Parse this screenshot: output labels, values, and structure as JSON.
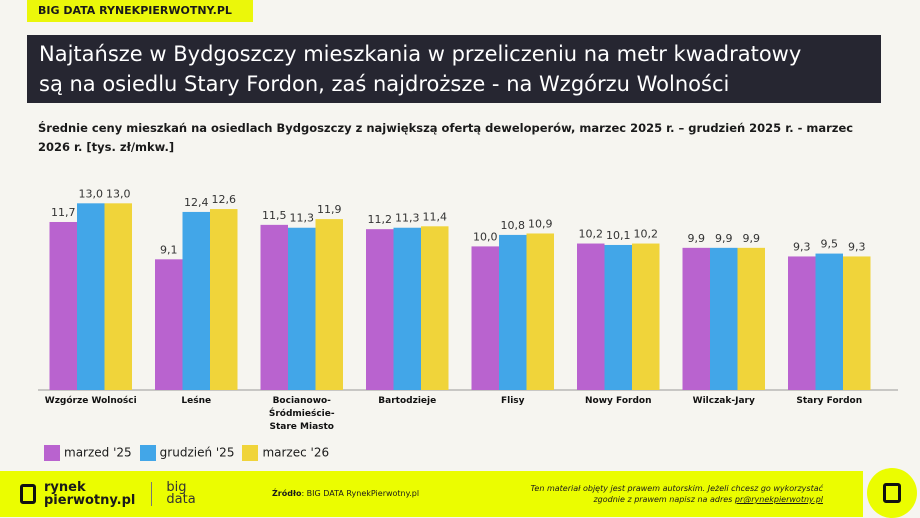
{
  "brand": "BIG DATA RYNEKPIERWOTNY.PL",
  "title_line1": "Najtańsze w Bydgoszczy mieszkania w przeliczeniu na metr kwadratowy",
  "title_line2": "są na osiedlu Stary Fordon, zaś najdroższe - na Wzgórzu Wolności",
  "chart_data": {
    "type": "bar",
    "title": "Średnie ceny mieszkań na osiedlach Bydgoszczy z największą ofertą deweloperów, marzec 2025 r. – grudzień 2025 r. - marzec 2026 r. [tys. zł/mkw.]",
    "categories": [
      "Wzgórze Wolności",
      "Leśne",
      "Bocianowo-Śródmieście-Stare Miasto",
      "Bartodzieje",
      "Flisy",
      "Nowy Fordon",
      "Wilczak-Jary",
      "Stary Fordon"
    ],
    "category_lines": [
      [
        "Wzgórze Wolności"
      ],
      [
        "Leśne"
      ],
      [
        "Bocianowo-",
        "Śródmieście-",
        "Stare Miasto"
      ],
      [
        "Bartodzieje"
      ],
      [
        "Flisy"
      ],
      [
        "Nowy Fordon"
      ],
      [
        "Wilczak-Jary"
      ],
      [
        "Stary Fordon"
      ]
    ],
    "series": [
      {
        "name": "marzed '25",
        "color": "#b963cf",
        "values": [
          11.7,
          9.1,
          11.5,
          11.2,
          10.0,
          10.2,
          9.9,
          9.3
        ]
      },
      {
        "name": "grudzień '25",
        "color": "#42a6e8",
        "values": [
          13.0,
          12.4,
          11.3,
          11.3,
          10.8,
          10.1,
          9.9,
          9.5
        ]
      },
      {
        "name": "marzec '26",
        "color": "#f0d43a",
        "values": [
          13.0,
          12.6,
          11.9,
          11.4,
          10.9,
          10.2,
          9.9,
          9.3
        ]
      }
    ],
    "ylim": [
      0,
      13
    ],
    "grid": false,
    "legend": "bottom-left",
    "decimal_separator": ","
  },
  "footer": {
    "logo_line1": "rynek",
    "logo_line2": "pierwotny.pl",
    "bigdata1": "big",
    "bigdata2": "data",
    "source_label": "Źródło",
    "source_text": ": BIG DATA RynekPierwotny.pl",
    "copyright_line1": "Ten materiał objęty jest prawem autorskim. Jeżeli chcesz go wykorzystać",
    "copyright_line2": "zgodnie z prawem napisz na adres ",
    "email": "pr@rynekpierwotny.pl"
  }
}
